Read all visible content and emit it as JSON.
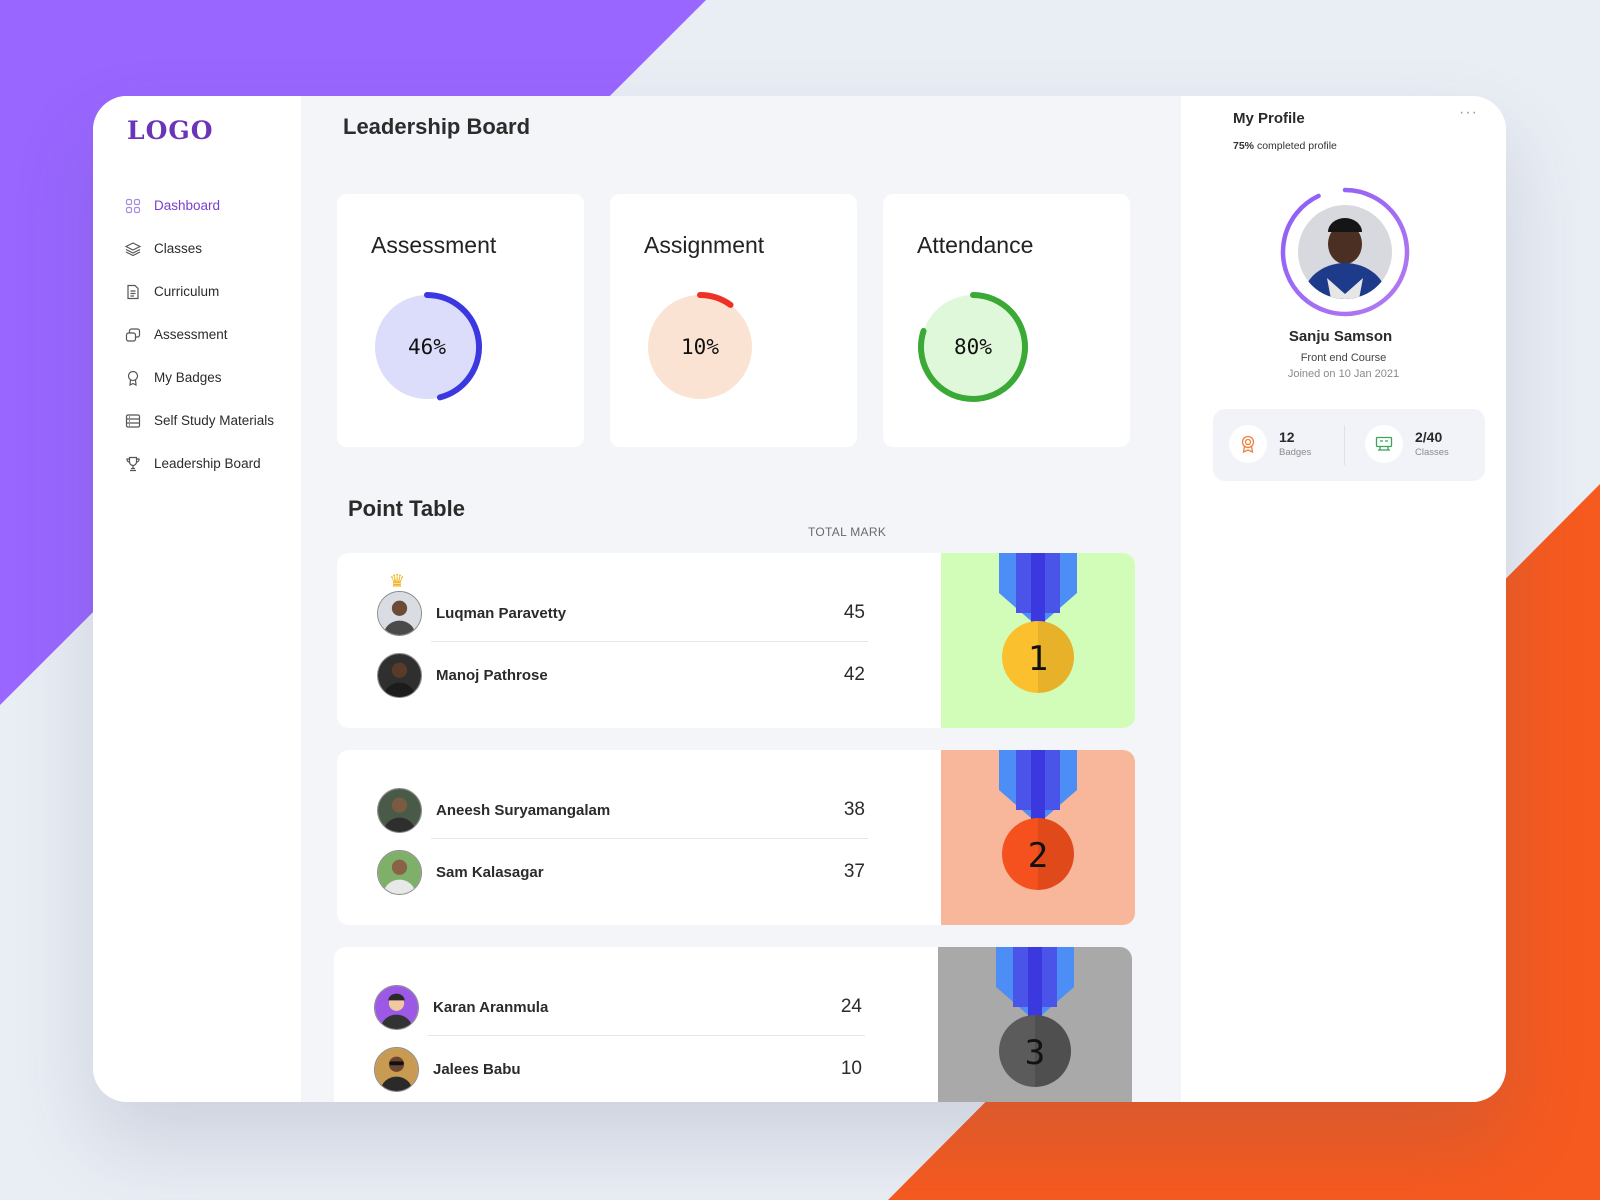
{
  "app": {
    "logo": "LOGO"
  },
  "sidebar": {
    "items": [
      {
        "label": "Dashboard",
        "icon": "dashboard-grid-icon",
        "active": true
      },
      {
        "label": "Classes",
        "icon": "layers-icon"
      },
      {
        "label": "Curriculum",
        "icon": "document-icon"
      },
      {
        "label": "Assessment",
        "icon": "assessment-icon"
      },
      {
        "label": "My Badges",
        "icon": "badge-icon"
      },
      {
        "label": "Self Study Materials",
        "icon": "materials-icon"
      },
      {
        "label": "Leadership Board",
        "icon": "trophy-icon"
      }
    ]
  },
  "main": {
    "title": "Leadership Board",
    "stats": [
      {
        "title": "Assessment",
        "percent": 46,
        "label": "46%",
        "color": "#3b38e0",
        "fill": "#dcdcfb"
      },
      {
        "title": "Assignment",
        "percent": 10,
        "label": "10%",
        "color": "#ee3124",
        "fill": "#fbe3d4"
      },
      {
        "title": "Attendance",
        "percent": 80,
        "label": "80%",
        "color": "#3aa935",
        "fill": "#e0f8da"
      }
    ],
    "point_table": {
      "title": "Point Table",
      "header": "TOTAL MARK",
      "groups": [
        {
          "rank": "1",
          "panel_color": "#d2fdb8",
          "medal_color": "#fbc02d",
          "rows": [
            {
              "name": "Luqman Paravetty",
              "mark": "45"
            },
            {
              "name": "Manoj Pathrose",
              "mark": "42"
            }
          ]
        },
        {
          "rank": "2",
          "panel_color": "#f8b79a",
          "medal_color": "#f4511e",
          "rows": [
            {
              "name": "Aneesh Suryamangalam",
              "mark": "38"
            },
            {
              "name": "Sam Kalasagar",
              "mark": "37"
            }
          ]
        },
        {
          "rank": "3",
          "panel_color": "#a9a9a9",
          "medal_color": "#5b5b5b",
          "rows": [
            {
              "name": "Karan Aranmula",
              "mark": "24"
            },
            {
              "name": "Jalees Babu",
              "mark": "10"
            }
          ]
        }
      ]
    }
  },
  "profile": {
    "title": "My Profile",
    "completion_value": "75%",
    "completion_text": "completed profile",
    "completion_percent": 75,
    "name": "Sanju Samson",
    "course": "Front end Course",
    "joined": "Joined on 10 Jan 2021",
    "badges": {
      "value": "12",
      "label": "Badges"
    },
    "classes": {
      "value": "2/40",
      "label": "Classes"
    }
  },
  "colors": {
    "accent": "#7b3fd0",
    "purple_bg": "#9966ff",
    "orange_bg": "#f65a1f"
  }
}
